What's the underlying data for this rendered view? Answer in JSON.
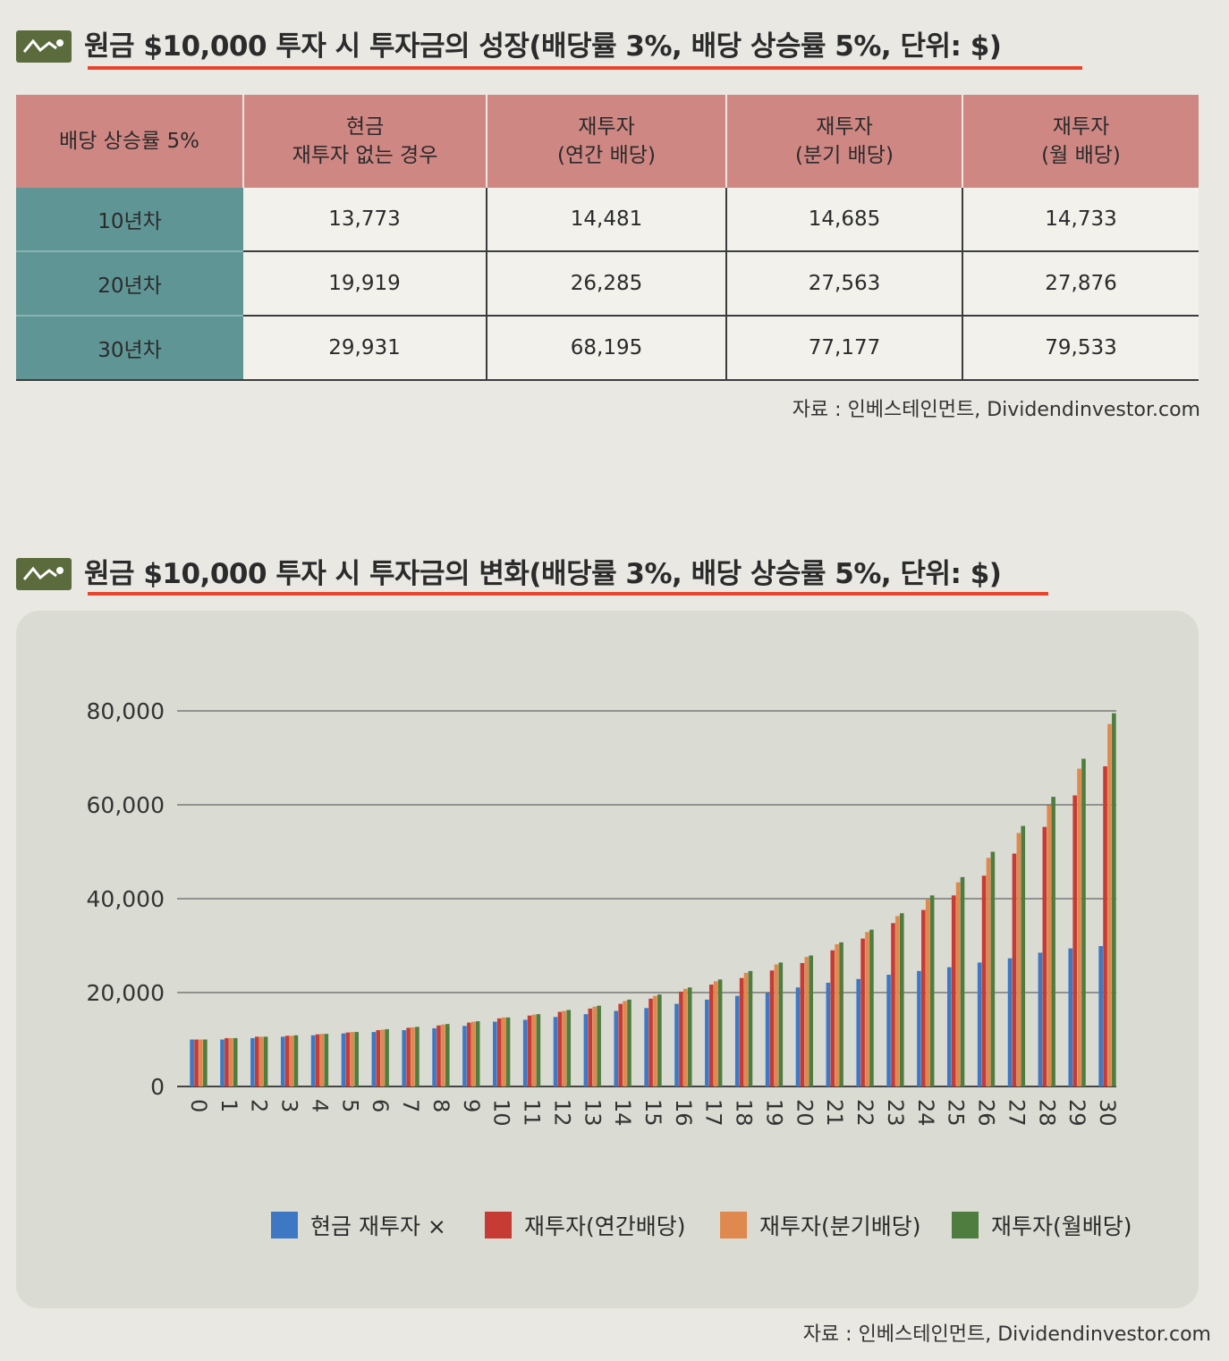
{
  "table_section": {
    "heading": "원금 $10,000 투자 시 투자금의 성장(배당률 3%, 배당 상승률 5%, 단위: $)",
    "icon": "trend-line-icon",
    "headers": [
      "배당 상승률 5%",
      "현금\n재투자 없는 경우",
      "재투자\n(연간 배당)",
      "재투자\n(분기 배당)",
      "재투자\n(월 배당)"
    ],
    "rows": [
      {
        "label": "10년차",
        "values": [
          "13,773",
          "14,481",
          "14,685",
          "14,733"
        ]
      },
      {
        "label": "20년차",
        "values": [
          "19,919",
          "26,285",
          "27,563",
          "27,876"
        ]
      },
      {
        "label": "30년차",
        "values": [
          "29,931",
          "68,195",
          "77,177",
          "79,533"
        ]
      }
    ],
    "source": "자료 : 인베스테인먼트, Dividendinvestor.com"
  },
  "chart_section": {
    "heading": "원금 $10,000 투자 시 투자금의 변화(배당률 3%, 배당 상승률 5%, 단위: $)",
    "icon": "trend-line-icon",
    "source": "자료 : 인베스테인먼트, Dividendinvestor.com"
  },
  "colors": {
    "accent_underline": "#e8452e",
    "table_header": "#cf8783",
    "table_rowhead": "#5f9695",
    "chart_panel": "#dadbd2"
  },
  "chart_data": {
    "type": "bar",
    "categories": [
      "0",
      "1",
      "2",
      "3",
      "4",
      "5",
      "6",
      "7",
      "8",
      "9",
      "10",
      "11",
      "12",
      "13",
      "14",
      "15",
      "16",
      "17",
      "18",
      "19",
      "20",
      "21",
      "22",
      "23",
      "24",
      "25",
      "26",
      "27",
      "28",
      "29",
      "30"
    ],
    "series": [
      {
        "name": "현금 재투자 ×",
        "color": "#3e78c4",
        "values": [
          10000,
          10000,
          10300,
          10600,
          10900,
          11300,
          11600,
          12000,
          12400,
          12900,
          13800,
          14200,
          14800,
          15400,
          16100,
          16700,
          17600,
          18500,
          19300,
          19900,
          21100,
          22100,
          22900,
          23800,
          24600,
          25400,
          26400,
          27300,
          28500,
          29400,
          29900
        ]
      },
      {
        "name": "재투자(연간배당)",
        "color": "#c63b34",
        "values": [
          10000,
          10300,
          10600,
          10800,
          11100,
          11500,
          12000,
          12500,
          13000,
          13600,
          14500,
          15100,
          15900,
          16600,
          17600,
          18700,
          20200,
          21700,
          23100,
          24700,
          26300,
          29000,
          31500,
          34800,
          37600,
          40700,
          44900,
          49600,
          55300,
          62000,
          68200
        ]
      },
      {
        "name": "재투자(분기배당)",
        "color": "#e0894e",
        "values": [
          10000,
          10300,
          10600,
          10800,
          11200,
          11600,
          12100,
          12600,
          13200,
          13800,
          14700,
          15300,
          16100,
          17000,
          18200,
          19300,
          20800,
          22400,
          24200,
          26000,
          27600,
          30300,
          32900,
          36300,
          39800,
          43500,
          48700,
          54000,
          59900,
          67700,
          77200
        ]
      },
      {
        "name": "재투자(월배당)",
        "color": "#4e7d3f",
        "values": [
          10000,
          10300,
          10600,
          10900,
          11200,
          11600,
          12200,
          12700,
          13300,
          13900,
          14700,
          15400,
          16300,
          17200,
          18500,
          19600,
          21100,
          22800,
          24600,
          26400,
          27900,
          30700,
          33400,
          36900,
          40700,
          44600,
          50000,
          55500,
          61700,
          69800,
          79500
        ]
      }
    ],
    "y_ticks": [
      "0",
      "20,000",
      "40,000",
      "60,000",
      "80,000"
    ],
    "ylim": [
      0,
      80000
    ],
    "grid": true,
    "legend_position": "bottom"
  }
}
